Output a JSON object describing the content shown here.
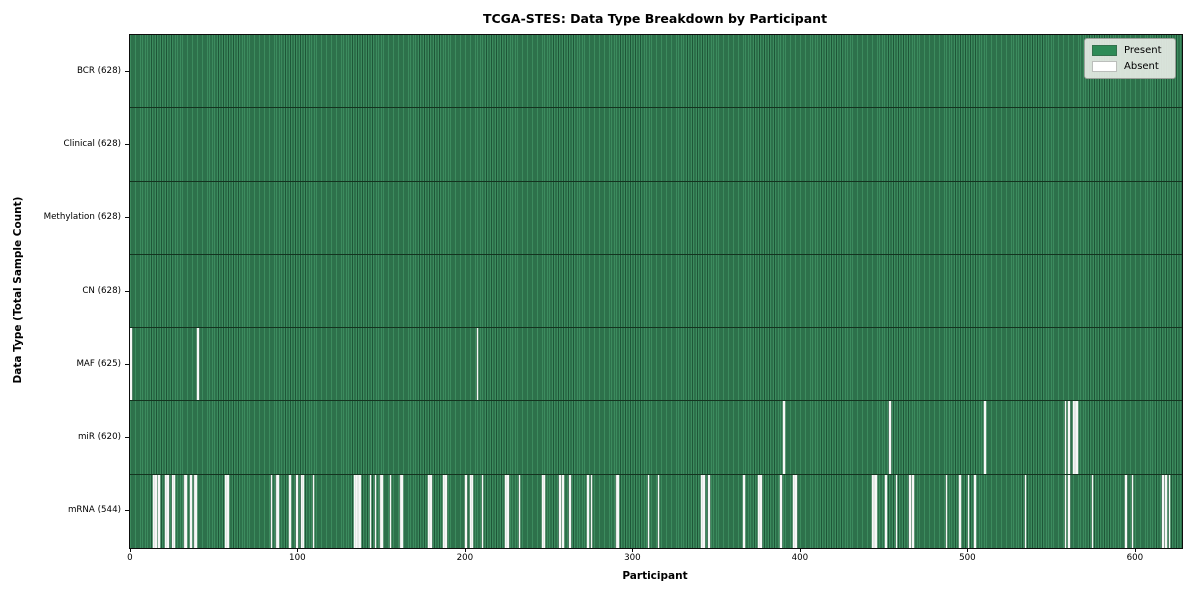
{
  "chart_data": {
    "type": "heatmap",
    "title": "TCGA-STES: Data Type Breakdown by Participant",
    "xlabel": "Participant",
    "ylabel": "Data Type (Total Sample Count)",
    "x_ticks": [
      0,
      100,
      200,
      300,
      400,
      500,
      600
    ],
    "x_range": [
      0,
      628
    ],
    "total_participants": 628,
    "legend_position": "upper right",
    "grid": false,
    "colors": {
      "present": "#2e8b57",
      "present_edge": "#1e5738",
      "absent": "#ffffff",
      "row_divider": "#14331f"
    },
    "legend": [
      {
        "label": "Present",
        "color": "#2e8b57"
      },
      {
        "label": "Absent",
        "color": "#ffffff"
      }
    ],
    "rows": [
      {
        "data_type": "BCR",
        "label": "BCR (628)",
        "present_count": 628,
        "absent_participants": []
      },
      {
        "data_type": "Clinical",
        "label": "Clinical (628)",
        "present_count": 628,
        "absent_participants": []
      },
      {
        "data_type": "Methylation",
        "label": "Methylation (628)",
        "present_count": 628,
        "absent_participants": []
      },
      {
        "data_type": "CN",
        "label": "CN (628)",
        "present_count": 628,
        "absent_participants": []
      },
      {
        "data_type": "MAF",
        "label": "MAF (625)",
        "present_count": 625,
        "absent_participants": [
          0,
          40,
          207
        ]
      },
      {
        "data_type": "miR",
        "label": "miR (620)",
        "present_count": 620,
        "absent_participants": [
          390,
          453,
          510,
          558,
          560,
          563,
          564,
          565
        ]
      },
      {
        "data_type": "mRNA",
        "label": "mRNA (544)",
        "present_count": 544,
        "absent_participants": [
          14,
          15,
          17,
          21,
          22,
          25,
          26,
          32,
          33,
          36,
          38,
          39,
          57,
          58,
          84,
          87,
          88,
          95,
          99,
          102,
          103,
          109,
          134,
          135,
          136,
          137,
          143,
          146,
          149,
          150,
          155,
          161,
          162,
          178,
          179,
          187,
          188,
          200,
          203,
          204,
          210,
          224,
          225,
          232,
          246,
          247,
          256,
          258,
          262,
          273,
          275,
          290,
          291,
          309,
          315,
          341,
          342,
          345,
          366,
          375,
          376,
          388,
          396,
          397,
          443,
          444,
          445,
          451,
          457,
          465,
          467,
          487,
          495,
          500,
          504,
          534,
          558,
          560,
          574,
          594,
          598,
          616,
          618,
          620
        ]
      }
    ]
  }
}
